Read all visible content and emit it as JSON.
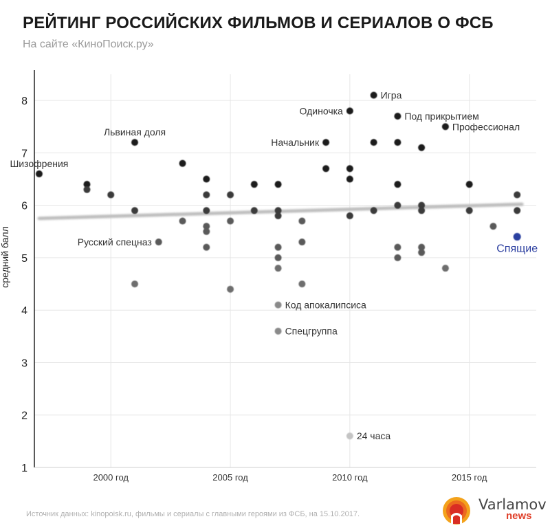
{
  "header": {
    "title": "РЕЙТИНГ РОССИЙСКИХ ФИЛЬМОВ И СЕРИАЛОВ О ФСБ",
    "subtitle": "На сайте «КиноПоиск.ру»"
  },
  "footer": {
    "source": "Источник данных: kinopoisk.ru, фильмы и сериалы с главными героями из ФСБ, на 15.10.2017."
  },
  "logo": {
    "line1": "Varlamov",
    "line2": "news",
    "icon": "sunburst-logo-icon"
  },
  "colors": {
    "highlight": "#2c3fa0",
    "trend": "#bdbdbd",
    "grid": "#e6e6e6"
  },
  "chart_data": {
    "type": "scatter",
    "title": "РЕЙТИНГ РОССИЙСКИХ ФИЛЬМОВ И СЕРИАЛОВ О ФСБ",
    "subtitle": "На сайте «КиноПоиск.ру»",
    "xlabel": "",
    "ylabel": "средний балл",
    "xlim": [
      1996.8,
      2017.8
    ],
    "ylim": [
      1,
      8.5
    ],
    "xticks": [
      {
        "value": 2000,
        "label": "2000 год"
      },
      {
        "value": 2005,
        "label": "2005 год"
      },
      {
        "value": 2010,
        "label": "2010 год"
      },
      {
        "value": 2015,
        "label": "2015 год"
      }
    ],
    "yticks": [
      {
        "value": 1,
        "label": "1"
      },
      {
        "value": 2,
        "label": "2"
      },
      {
        "value": 3,
        "label": "3"
      },
      {
        "value": 4,
        "label": "4"
      },
      {
        "value": 5,
        "label": "5"
      },
      {
        "value": 6,
        "label": "6"
      },
      {
        "value": 7,
        "label": "7"
      },
      {
        "value": 8,
        "label": "8"
      }
    ],
    "grid": true,
    "trendline": {
      "x": [
        1997,
        2017.2
      ],
      "y": [
        5.75,
        6.02
      ]
    },
    "points": [
      {
        "x": 1997,
        "y": 6.6,
        "label": "Шизофрения",
        "label_pos": "above"
      },
      {
        "x": 1999,
        "y": 6.4
      },
      {
        "x": 1999,
        "y": 6.3
      },
      {
        "x": 2000,
        "y": 6.2
      },
      {
        "x": 2001,
        "y": 7.2,
        "label": "Львиная доля",
        "label_pos": "above"
      },
      {
        "x": 2001,
        "y": 5.9
      },
      {
        "x": 2001,
        "y": 4.5
      },
      {
        "x": 2002,
        "y": 5.3,
        "label": "Русский спецназ",
        "label_pos": "left"
      },
      {
        "x": 2003,
        "y": 6.8
      },
      {
        "x": 2003,
        "y": 5.7
      },
      {
        "x": 2004,
        "y": 6.5
      },
      {
        "x": 2004,
        "y": 6.2
      },
      {
        "x": 2004,
        "y": 5.9
      },
      {
        "x": 2004,
        "y": 5.6
      },
      {
        "x": 2004,
        "y": 5.5
      },
      {
        "x": 2004,
        "y": 5.2
      },
      {
        "x": 2005,
        "y": 6.2
      },
      {
        "x": 2005,
        "y": 5.7
      },
      {
        "x": 2005,
        "y": 4.4
      },
      {
        "x": 2006,
        "y": 6.4
      },
      {
        "x": 2006,
        "y": 5.9
      },
      {
        "x": 2007,
        "y": 6.4
      },
      {
        "x": 2007,
        "y": 5.9
      },
      {
        "x": 2007,
        "y": 5.8
      },
      {
        "x": 2007,
        "y": 5.2
      },
      {
        "x": 2007,
        "y": 5.0
      },
      {
        "x": 2007,
        "y": 4.8
      },
      {
        "x": 2007,
        "y": 4.1,
        "label": "Код апокалипсиса",
        "label_pos": "right"
      },
      {
        "x": 2007,
        "y": 3.6,
        "label": "Спецгруппа",
        "label_pos": "right"
      },
      {
        "x": 2008,
        "y": 5.7
      },
      {
        "x": 2008,
        "y": 5.3
      },
      {
        "x": 2008,
        "y": 4.5
      },
      {
        "x": 2009,
        "y": 7.2,
        "label": "Начальник",
        "label_pos": "left"
      },
      {
        "x": 2009,
        "y": 6.7
      },
      {
        "x": 2010,
        "y": 7.8,
        "label": "Одиночка",
        "label_pos": "left"
      },
      {
        "x": 2010,
        "y": 6.7
      },
      {
        "x": 2010,
        "y": 6.5
      },
      {
        "x": 2010,
        "y": 5.8
      },
      {
        "x": 2010,
        "y": 1.6,
        "label": "24 часа",
        "label_pos": "right"
      },
      {
        "x": 2011,
        "y": 8.1,
        "label": "Игра",
        "label_pos": "right"
      },
      {
        "x": 2011,
        "y": 7.2
      },
      {
        "x": 2011,
        "y": 5.9
      },
      {
        "x": 2012,
        "y": 7.7,
        "label": "Под прикрытием",
        "label_pos": "right"
      },
      {
        "x": 2012,
        "y": 7.2
      },
      {
        "x": 2012,
        "y": 6.4
      },
      {
        "x": 2012,
        "y": 6.0
      },
      {
        "x": 2012,
        "y": 5.2
      },
      {
        "x": 2012,
        "y": 5.0
      },
      {
        "x": 2013,
        "y": 7.1
      },
      {
        "x": 2013,
        "y": 6.0
      },
      {
        "x": 2013,
        "y": 5.9
      },
      {
        "x": 2013,
        "y": 5.2
      },
      {
        "x": 2013,
        "y": 5.1
      },
      {
        "x": 2014,
        "y": 7.5,
        "label": "Профессионал",
        "label_pos": "right"
      },
      {
        "x": 2014,
        "y": 4.8
      },
      {
        "x": 2015,
        "y": 6.4
      },
      {
        "x": 2015,
        "y": 5.9
      },
      {
        "x": 2016,
        "y": 5.6
      },
      {
        "x": 2017,
        "y": 6.2
      },
      {
        "x": 2017,
        "y": 5.9
      },
      {
        "x": 2017,
        "y": 5.4,
        "label": "Спящие",
        "label_pos": "below",
        "highlight": true
      }
    ]
  }
}
